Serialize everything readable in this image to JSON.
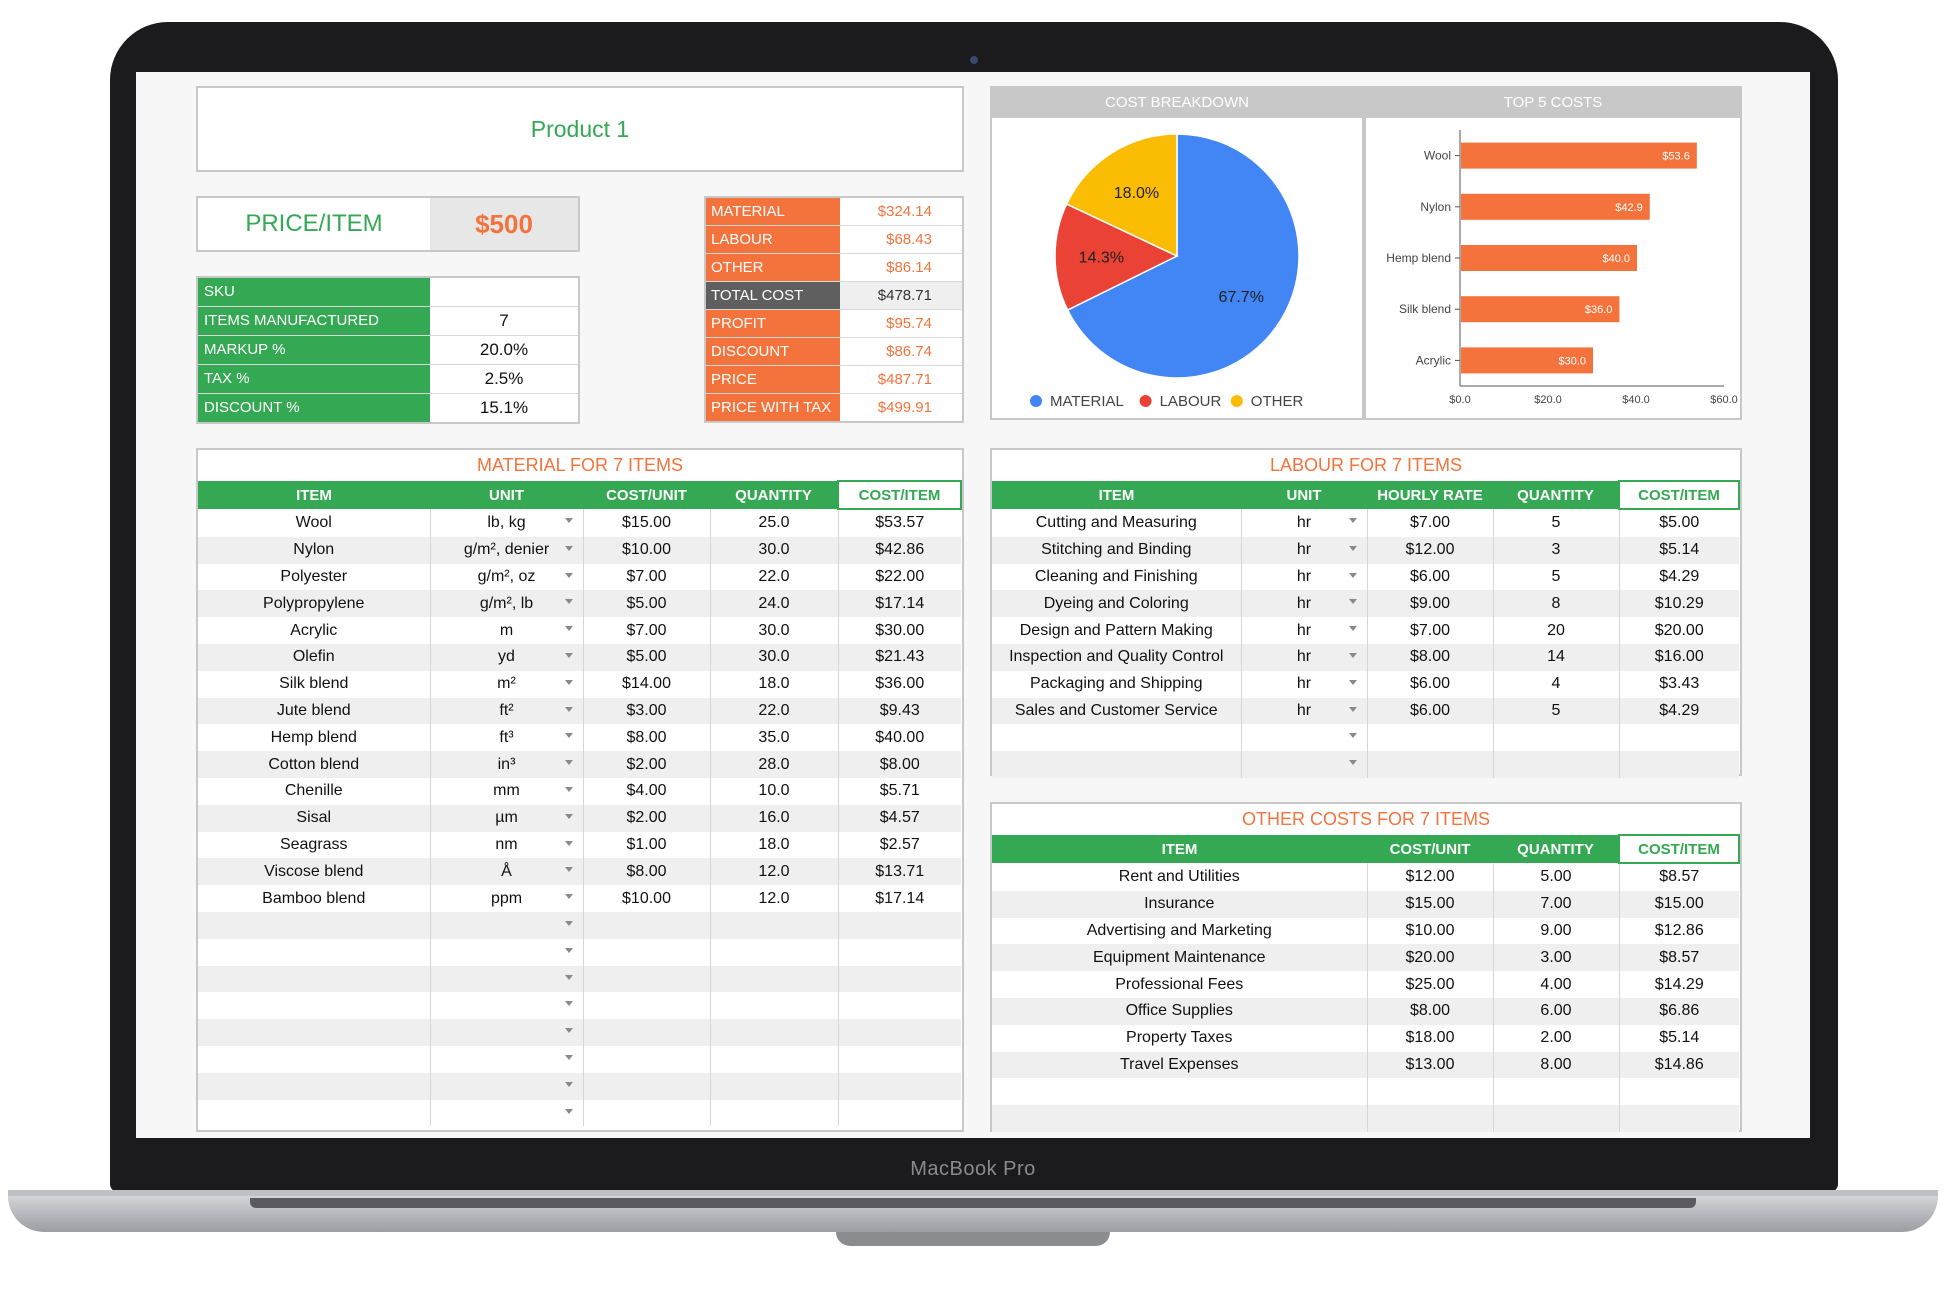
{
  "brand": "MacBook Pro",
  "title": "Product 1",
  "price": {
    "label": "PRICE/ITEM",
    "value": "$500"
  },
  "params": [
    {
      "key": "SKU",
      "value": ""
    },
    {
      "key": "ITEMS MANUFACTURED",
      "value": "7"
    },
    {
      "key": "MARKUP %",
      "value": "20.0%"
    },
    {
      "key": "TAX %",
      "value": "2.5%"
    },
    {
      "key": "DISCOUNT %",
      "value": "15.1%"
    }
  ],
  "summary": [
    {
      "key": "MATERIAL",
      "value": "$324.14",
      "style": "orange"
    },
    {
      "key": "LABOUR",
      "value": "$68.43",
      "style": "orange"
    },
    {
      "key": "OTHER",
      "value": "$86.14",
      "style": "orange"
    },
    {
      "key": "TOTAL COST",
      "value": "$478.71",
      "style": "gray"
    },
    {
      "key": "PROFIT",
      "value": "$95.74",
      "style": "orange"
    },
    {
      "key": "DISCOUNT",
      "value": "$86.74",
      "style": "orange"
    },
    {
      "key": "PRICE",
      "value": "$487.71",
      "style": "orange"
    },
    {
      "key": "PRICE WITH TAX",
      "value": "$499.91",
      "style": "orange"
    }
  ],
  "chart_data": [
    {
      "type": "pie",
      "title": "COST BREAKDOWN",
      "categories": [
        "MATERIAL",
        "LABOUR",
        "OTHER"
      ],
      "values": [
        67.7,
        14.3,
        18.0
      ],
      "labels": [
        "67.7%",
        "14.3%",
        "18.0%"
      ],
      "colors": [
        "#4285f4",
        "#ea4335",
        "#fbbc04"
      ],
      "legend": "bottom"
    },
    {
      "type": "bar",
      "orientation": "horizontal",
      "title": "TOP 5 COSTS",
      "categories": [
        "Wool",
        "Nylon",
        "Hemp blend",
        "Silk blend",
        "Acrylic"
      ],
      "values": [
        53.6,
        42.9,
        40.0,
        36.0,
        30.0
      ],
      "labels": [
        "$53.6",
        "$42.9",
        "$40.0",
        "$36.0",
        "$30.0"
      ],
      "xlim": [
        0,
        60
      ],
      "xticks": [
        "$0.0",
        "$20.0",
        "$40.0",
        "$60.0"
      ],
      "color": "#f4733c"
    }
  ],
  "material": {
    "title": "MATERIAL FOR 7 ITEMS",
    "headers": [
      "ITEM",
      "UNIT",
      "COST/UNIT",
      "QUANTITY",
      "COST/ITEM"
    ],
    "rows": [
      [
        "Wool",
        "lb, kg",
        "$15.00",
        "25.0",
        "$53.57"
      ],
      [
        "Nylon",
        "g/m², denier",
        "$10.00",
        "30.0",
        "$42.86"
      ],
      [
        "Polyester",
        "g/m², oz",
        "$7.00",
        "22.0",
        "$22.00"
      ],
      [
        "Polypropylene",
        "g/m², lb",
        "$5.00",
        "24.0",
        "$17.14"
      ],
      [
        "Acrylic",
        "m",
        "$7.00",
        "30.0",
        "$30.00"
      ],
      [
        "Olefin",
        "yd",
        "$5.00",
        "30.0",
        "$21.43"
      ],
      [
        "Silk blend",
        "m²",
        "$14.00",
        "18.0",
        "$36.00"
      ],
      [
        "Jute blend",
        "ft²",
        "$3.00",
        "22.0",
        "$9.43"
      ],
      [
        "Hemp blend",
        "ft³",
        "$8.00",
        "35.0",
        "$40.00"
      ],
      [
        "Cotton blend",
        "in³",
        "$2.00",
        "28.0",
        "$8.00"
      ],
      [
        "Chenille",
        "mm",
        "$4.00",
        "10.0",
        "$5.71"
      ],
      [
        "Sisal",
        "µm",
        "$2.00",
        "16.0",
        "$4.57"
      ],
      [
        "Seagrass",
        "nm",
        "$1.00",
        "18.0",
        "$2.57"
      ],
      [
        "Viscose blend",
        "Å",
        "$8.00",
        "12.0",
        "$13.71"
      ],
      [
        "Bamboo blend",
        "ppm",
        "$10.00",
        "12.0",
        "$17.14"
      ],
      [
        "",
        "",
        "",
        "",
        ""
      ],
      [
        "",
        "",
        "",
        "",
        ""
      ],
      [
        "",
        "",
        "",
        "",
        ""
      ],
      [
        "",
        "",
        "",
        "",
        ""
      ],
      [
        "",
        "",
        "",
        "",
        ""
      ],
      [
        "",
        "",
        "",
        "",
        ""
      ],
      [
        "",
        "",
        "",
        "",
        ""
      ],
      [
        "",
        "",
        "",
        "",
        ""
      ]
    ]
  },
  "labour": {
    "title": "LABOUR FOR 7 ITEMS",
    "headers": [
      "ITEM",
      "UNIT",
      "HOURLY RATE",
      "QUANTITY",
      "COST/ITEM"
    ],
    "rows": [
      [
        "Cutting and Measuring",
        "hr",
        "$7.00",
        "5",
        "$5.00"
      ],
      [
        "Stitching and Binding",
        "hr",
        "$12.00",
        "3",
        "$5.14"
      ],
      [
        "Cleaning and Finishing",
        "hr",
        "$6.00",
        "5",
        "$4.29"
      ],
      [
        "Dyeing and Coloring",
        "hr",
        "$9.00",
        "8",
        "$10.29"
      ],
      [
        "Design and Pattern Making",
        "hr",
        "$7.00",
        "20",
        "$20.00"
      ],
      [
        "Inspection and Quality Control",
        "hr",
        "$8.00",
        "14",
        "$16.00"
      ],
      [
        "Packaging and Shipping",
        "hr",
        "$6.00",
        "4",
        "$3.43"
      ],
      [
        "Sales and Customer Service",
        "hr",
        "$6.00",
        "5",
        "$4.29"
      ],
      [
        "",
        "",
        "",
        "",
        ""
      ],
      [
        "",
        "",
        "",
        "",
        ""
      ]
    ]
  },
  "other": {
    "title": "OTHER COSTS FOR 7 ITEMS",
    "headers": [
      "ITEM",
      "COST/UNIT",
      "QUANTITY",
      "COST/ITEM"
    ],
    "rows": [
      [
        "Rent and Utilities",
        "$12.00",
        "5.00",
        "$8.57"
      ],
      [
        "Insurance",
        "$15.00",
        "7.00",
        "$15.00"
      ],
      [
        "Advertising and Marketing",
        "$10.00",
        "9.00",
        "$12.86"
      ],
      [
        "Equipment Maintenance",
        "$20.00",
        "3.00",
        "$8.57"
      ],
      [
        "Professional Fees",
        "$25.00",
        "4.00",
        "$14.29"
      ],
      [
        "Office Supplies",
        "$8.00",
        "6.00",
        "$6.86"
      ],
      [
        "Property Taxes",
        "$18.00",
        "2.00",
        "$5.14"
      ],
      [
        "Travel Expenses",
        "$13.00",
        "8.00",
        "$14.86"
      ],
      [
        "",
        "",
        "",
        ""
      ],
      [
        "",
        "",
        "",
        ""
      ]
    ]
  }
}
